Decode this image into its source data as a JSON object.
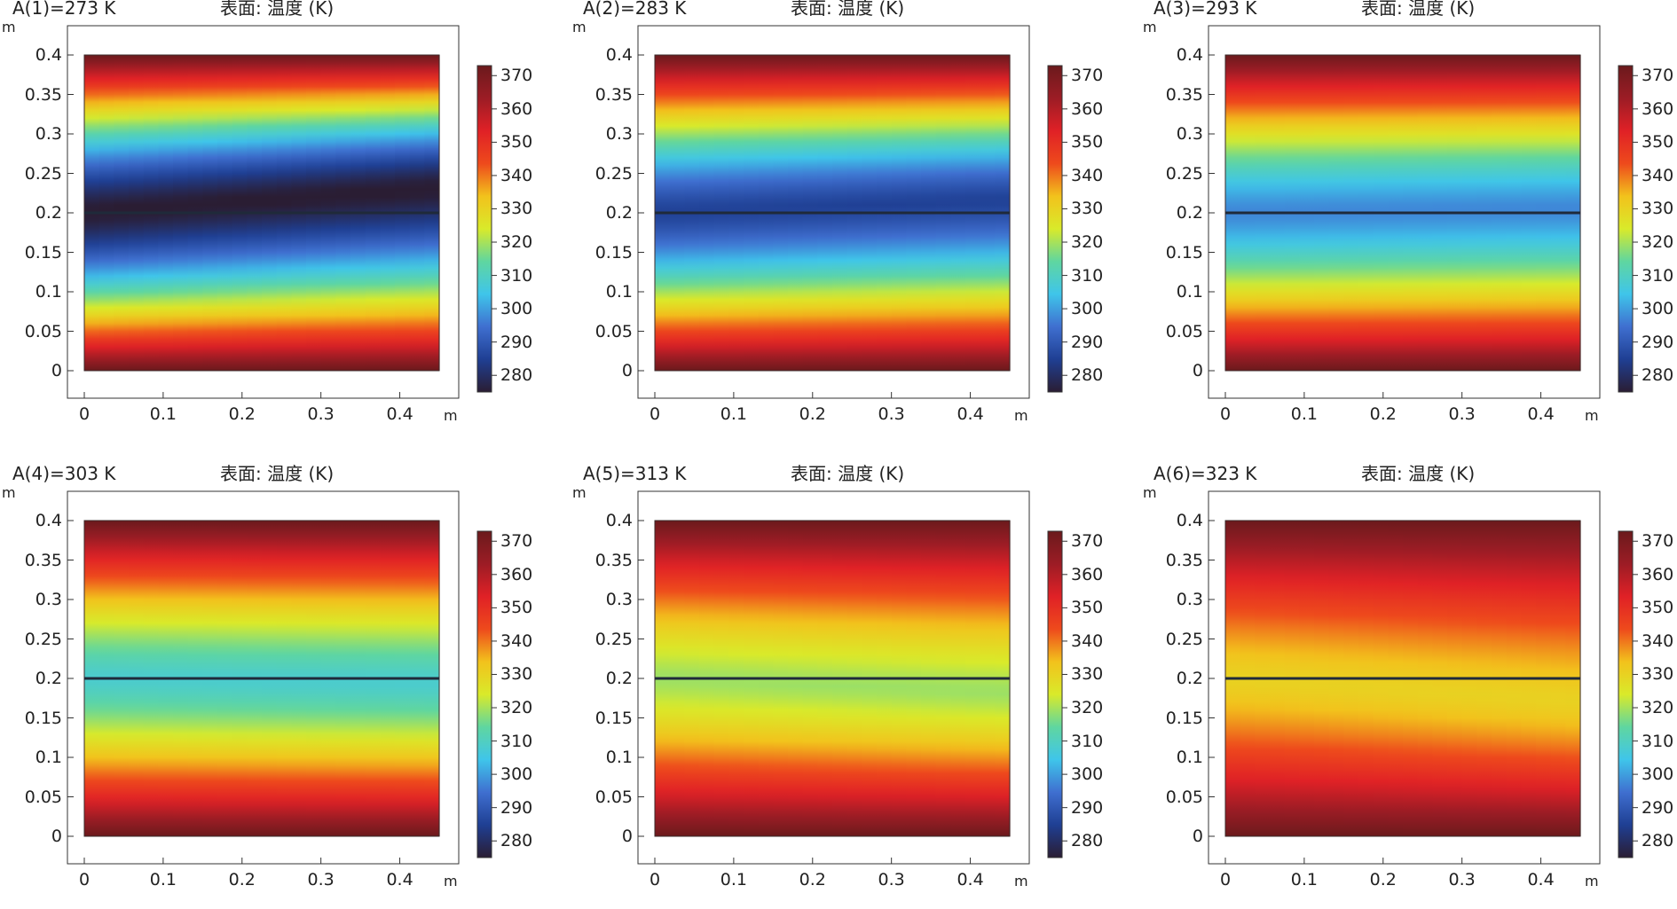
{
  "chart_data": {
    "type": "heatmap",
    "plot_title": "表面: 温度 (K)",
    "xlabel": "m",
    "ylabel": "m",
    "xlim": [
      0,
      0.45
    ],
    "ylim": [
      0,
      0.4
    ],
    "x_ticks": [
      "0",
      "0.1",
      "0.2",
      "0.3",
      "0.4"
    ],
    "y_ticks": [
      "0",
      "0.05",
      "0.1",
      "0.15",
      "0.2",
      "0.25",
      "0.3",
      "0.35",
      "0.4"
    ],
    "colorbar": {
      "ticks": [
        "280",
        "290",
        "300",
        "310",
        "320",
        "330",
        "340",
        "350",
        "360",
        "370"
      ],
      "range": [
        275,
        373
      ],
      "colormap": [
        "#2a1d33",
        "#1f3f93",
        "#3f6fd0",
        "#3fc5ea",
        "#5fd6a0",
        "#d9ea2a",
        "#f2c21c",
        "#ee4a1c",
        "#e02126",
        "#9c1c25",
        "#6b1a1c"
      ]
    },
    "divider_y": 0.2,
    "panels": [
      {
        "label": "A(1)=273 K",
        "param": 273,
        "center_temp": 274,
        "band_left": 0.2,
        "band_right": 0.232
      },
      {
        "label": "A(2)=283 K",
        "param": 283,
        "center_temp": 285,
        "band_left": 0.2,
        "band_right": 0.216
      },
      {
        "label": "A(3)=293 K",
        "param": 293,
        "center_temp": 297,
        "band_left": 0.2,
        "band_right": 0.205
      },
      {
        "label": "A(4)=303 K",
        "param": 303,
        "center_temp": 308,
        "band_left": 0.2,
        "band_right": 0.194
      },
      {
        "label": "A(5)=313 K",
        "param": 313,
        "center_temp": 319,
        "band_left": 0.2,
        "band_right": 0.182
      },
      {
        "label": "A(6)=323 K",
        "param": 323,
        "center_temp": 330,
        "band_left": 0.2,
        "band_right": 0.17
      }
    ]
  }
}
